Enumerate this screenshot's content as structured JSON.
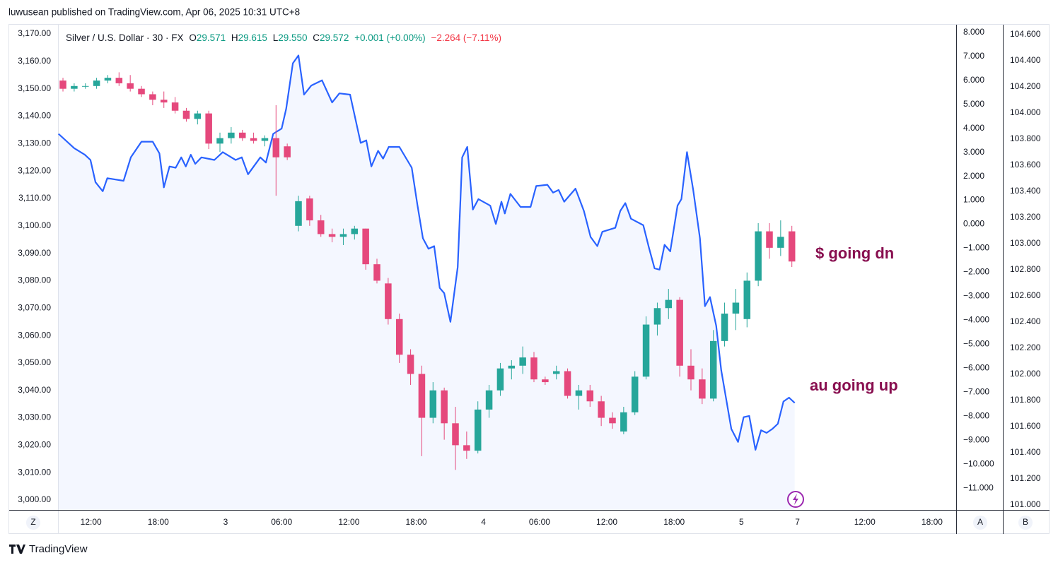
{
  "header": {
    "text": "luwusean published on TradingView.com, Apr 06, 2025 10:31 UTC+8"
  },
  "footer": {
    "brand": "TradingView"
  },
  "axis_buttons": [
    "Z",
    "A",
    "B"
  ],
  "chart_data": {
    "type": "candlestick",
    "legend": {
      "symbol": "Silver / U.S. Dollar · 30 · FX",
      "items": [
        {
          "key": "O",
          "value": "29.571"
        },
        {
          "key": "H",
          "value": "29.615"
        },
        {
          "key": "L",
          "value": "29.550"
        },
        {
          "key": "C",
          "value": "29.572"
        }
      ],
      "change": "+0.001 (+0.00%)",
      "change_total": "−2.264 (−7.11%)"
    },
    "annotations": [
      "$ going dn",
      "au going up"
    ],
    "up_color": "#26a69a",
    "down_color": "#e5487c",
    "grid": false,
    "xlim": [
      -0.76,
      159.3
    ],
    "xticks": [
      {
        "value": 5,
        "label": "12:00"
      },
      {
        "value": 17,
        "label": "18:00"
      },
      {
        "value": 29,
        "label": "3"
      },
      {
        "value": 39,
        "label": "06:00"
      },
      {
        "value": 51,
        "label": "12:00"
      },
      {
        "value": 63,
        "label": "18:00"
      },
      {
        "value": 75,
        "label": "4"
      },
      {
        "value": 85,
        "label": "06:00"
      },
      {
        "value": 97,
        "label": "12:00"
      },
      {
        "value": 109,
        "label": "18:00"
      },
      {
        "value": 121,
        "label": "5"
      },
      {
        "value": 131,
        "label": "7"
      },
      {
        "value": 143,
        "label": "12:00"
      },
      {
        "value": 155,
        "label": "18:00"
      }
    ],
    "ylim": [
      2996.4,
      3173.1
    ],
    "yticks": [
      {
        "value": 3000,
        "label": "3,000.00"
      },
      {
        "value": 3010,
        "label": "3,010.00"
      },
      {
        "value": 3020,
        "label": "3,020.00"
      },
      {
        "value": 3030,
        "label": "3,030.00"
      },
      {
        "value": 3040,
        "label": "3,040.00"
      },
      {
        "value": 3050,
        "label": "3,050.00"
      },
      {
        "value": 3060,
        "label": "3,060.00"
      },
      {
        "value": 3070,
        "label": "3,070.00"
      },
      {
        "value": 3080,
        "label": "3,080.00"
      },
      {
        "value": 3090,
        "label": "3,090.00"
      },
      {
        "value": 3100,
        "label": "3,100.00"
      },
      {
        "value": 3110,
        "label": "3,110.00"
      },
      {
        "value": 3120,
        "label": "3,120.00"
      },
      {
        "value": 3130,
        "label": "3,130.00"
      },
      {
        "value": 3140,
        "label": "3,140.00"
      },
      {
        "value": 3150,
        "label": "3,150.00"
      },
      {
        "value": 3160,
        "label": "3,160.00"
      },
      {
        "value": 3170,
        "label": "3,170.00"
      }
    ],
    "y3lim": [
      -11.91,
      8.29
    ],
    "y3ticks": [
      {
        "value": 8,
        "label": "8.000"
      },
      {
        "value": 7,
        "label": "7.000"
      },
      {
        "value": 6,
        "label": "6.000"
      },
      {
        "value": 5,
        "label": "5.000"
      },
      {
        "value": 4,
        "label": "4.000"
      },
      {
        "value": 3,
        "label": "3.000"
      },
      {
        "value": 2,
        "label": "2.000"
      },
      {
        "value": 1,
        "label": "1.000"
      },
      {
        "value": 0,
        "label": "0.000"
      },
      {
        "value": -1,
        "label": "−1.000"
      },
      {
        "value": -2,
        "label": "−2.000"
      },
      {
        "value": -3,
        "label": "−3.000"
      },
      {
        "value": -4,
        "label": "−4.000"
      },
      {
        "value": -5,
        "label": "−5.000"
      },
      {
        "value": -6,
        "label": "−6.000"
      },
      {
        "value": -7,
        "label": "−7.000"
      },
      {
        "value": -8,
        "label": "−8.000"
      },
      {
        "value": -9,
        "label": "−9.000"
      },
      {
        "value": -10,
        "label": "−10.000"
      },
      {
        "value": -11,
        "label": "−11.000"
      }
    ],
    "y2lim": [
      100.96,
      104.67
    ],
    "y2ticks": [
      {
        "value": 101,
        "label": "101.000"
      },
      {
        "value": 101.2,
        "label": "101.200"
      },
      {
        "value": 101.4,
        "label": "101.400"
      },
      {
        "value": 101.6,
        "label": "101.600"
      },
      {
        "value": 101.8,
        "label": "101.800"
      },
      {
        "value": 102,
        "label": "102.000"
      },
      {
        "value": 102.2,
        "label": "102.200"
      },
      {
        "value": 102.4,
        "label": "102.400"
      },
      {
        "value": 102.6,
        "label": "102.600"
      },
      {
        "value": 102.8,
        "label": "102.800"
      },
      {
        "value": 103,
        "label": "103.000"
      },
      {
        "value": 103.2,
        "label": "103.200"
      },
      {
        "value": 103.4,
        "label": "103.400"
      },
      {
        "value": 103.6,
        "label": "103.600"
      },
      {
        "value": 103.8,
        "label": "103.800"
      },
      {
        "value": 104,
        "label": "104.000"
      },
      {
        "value": 104.2,
        "label": "104.200"
      },
      {
        "value": 104.4,
        "label": "104.400"
      },
      {
        "value": 104.6,
        "label": "104.600"
      }
    ],
    "x": [
      0,
      2,
      4,
      6,
      8,
      10,
      12,
      14,
      16,
      18,
      20,
      22,
      24,
      26,
      28,
      30,
      32,
      34,
      36,
      38,
      40,
      42,
      44,
      46,
      48,
      50,
      52,
      54,
      56,
      58,
      60,
      62,
      64,
      66,
      68,
      70,
      72,
      74,
      76,
      78,
      80,
      82,
      84,
      86,
      88,
      90,
      92,
      94,
      96,
      98,
      100,
      102,
      104,
      106,
      108,
      110,
      112,
      114,
      116,
      118,
      120,
      122,
      124,
      126,
      128,
      130
    ],
    "open": [
      3153,
      3150,
      3151,
      3151,
      3153,
      3154,
      3152,
      3150,
      3148,
      3146,
      3145,
      3142,
      3139,
      3141,
      3130,
      3132,
      3134,
      3132,
      3131,
      3132,
      3129,
      3100,
      3110,
      3102,
      3097,
      3096,
      3097,
      3099,
      3086,
      3079,
      3066,
      3053,
      3046,
      3030,
      3040,
      3028,
      3020,
      3018,
      3033,
      3040,
      3048,
      3049,
      3052,
      3044,
      3046,
      3047,
      3038,
      3040,
      3036,
      3030,
      3025,
      3032,
      3045,
      3064,
      3070,
      3073,
      3049,
      3044,
      3037,
      3058,
      3068,
      3066,
      3080,
      3098,
      3092,
      3098
    ],
    "high": [
      3154,
      3152,
      3152,
      3154,
      3155,
      3156,
      3155,
      3151,
      3149,
      3149,
      3147,
      3143,
      3142,
      3142,
      3134,
      3136,
      3135,
      3134,
      3133,
      3144,
      3130,
      3111,
      3111,
      3104,
      3099,
      3099,
      3100,
      3099,
      3088,
      3081,
      3068,
      3055,
      3049,
      3043,
      3041,
      3034,
      3025,
      3036,
      3042,
      3050,
      3051,
      3056,
      3054,
      3045,
      3049,
      3048,
      3042,
      3042,
      3038,
      3032,
      3034,
      3047,
      3067,
      3072,
      3077,
      3074,
      3055,
      3048,
      3062,
      3072,
      3077,
      3083,
      3101,
      3101,
      3102,
      3100
    ],
    "low": [
      3149,
      3149,
      3150,
      3150,
      3152,
      3151,
      3149,
      3147,
      3144,
      3143,
      3141,
      3138,
      3137,
      3128,
      3127,
      3130,
      3131,
      3130,
      3129,
      3111,
      3124,
      3098,
      3100,
      3096,
      3094,
      3093,
      3095,
      3084,
      3079,
      3064,
      3050,
      3042,
      3016,
      3028,
      3022,
      3011,
      3015,
      3017,
      3030,
      3038,
      3044,
      3046,
      3043,
      3042,
      3044,
      3037,
      3033,
      3034,
      3027,
      3026,
      3024,
      3031,
      3044,
      3060,
      3066,
      3045,
      3040,
      3035,
      3036,
      3056,
      3062,
      3063,
      3078,
      3088,
      3089,
      3085
    ],
    "close": [
      3150,
      3151,
      3151,
      3153,
      3154,
      3152,
      3150,
      3148,
      3146,
      3145,
      3142,
      3139,
      3141,
      3130,
      3132,
      3134,
      3132,
      3131,
      3132,
      3125,
      3125,
      3109,
      3102,
      3097,
      3096,
      3097,
      3099,
      3086,
      3080,
      3066,
      3053,
      3046,
      3030,
      3040,
      3028,
      3020,
      3018,
      3033,
      3040,
      3048,
      3049,
      3052,
      3044,
      3043,
      3047,
      3038,
      3040,
      3036,
      3030,
      3028,
      3032,
      3045,
      3064,
      3070,
      3073,
      3049,
      3044,
      3037,
      3058,
      3068,
      3072,
      3080,
      3098,
      3092,
      3096,
      3087
    ],
    "overlay": {
      "type": "line",
      "axis": "y2",
      "color": "#2962ff",
      "x": [
        -0.8,
        2.0,
        3.9,
        4.9,
        5.8,
        7.1,
        7.9,
        10.8,
        12.1,
        14.0,
        16.0,
        17.2,
        18.0,
        19.0,
        20.1,
        21.1,
        21.9,
        22.8,
        23.6,
        24.7,
        27.0,
        28.5,
        30.8,
        31.9,
        33.0,
        35.2,
        36.2,
        37.5,
        39.0,
        39.8,
        41.0,
        42.0,
        43.0,
        44.3,
        46.2,
        48.0,
        49.3,
        51.2,
        53.1,
        54.1,
        55.0,
        56.2,
        57.1,
        58.1,
        60.0,
        62.2,
        63.2,
        64.2,
        65.2,
        66.2,
        67.2,
        68.0,
        69.1,
        70.4,
        71.2,
        72.1,
        73.1,
        74.1,
        76.2,
        77.2,
        78.2,
        78.8,
        79.8,
        81.6,
        83.4,
        84.4,
        86.4,
        87.4,
        88.4,
        89.4,
        91.4,
        92.9,
        94.1,
        95.3,
        96.2,
        98.5,
        99.4,
        100.3,
        101.3,
        103.5,
        104.5,
        105.5,
        106.4,
        107.3,
        108.3,
        109.6,
        110.3,
        111.3,
        112.4,
        113.6,
        114.5,
        115.4,
        116.5,
        117.4,
        119.2,
        120.4,
        121.4,
        122.4,
        123.5,
        124.5,
        125.5,
        126.5,
        127.5,
        128.5,
        129.5,
        130.5
      ],
      "values": [
        103.84,
        103.73,
        103.68,
        103.64,
        103.47,
        103.4,
        103.5,
        103.48,
        103.66,
        103.78,
        103.78,
        103.69,
        103.43,
        103.59,
        103.58,
        103.66,
        103.59,
        103.68,
        103.61,
        103.66,
        103.64,
        103.7,
        103.64,
        103.66,
        103.53,
        103.66,
        103.62,
        103.84,
        103.88,
        104.03,
        104.38,
        104.44,
        104.14,
        104.21,
        104.25,
        104.08,
        104.15,
        104.14,
        103.77,
        103.79,
        103.59,
        103.71,
        103.65,
        103.74,
        103.74,
        103.58,
        103.3,
        103.04,
        102.96,
        102.98,
        102.66,
        102.62,
        102.4,
        102.82,
        103.66,
        103.74,
        103.26,
        103.34,
        103.29,
        103.15,
        103.32,
        103.23,
        103.38,
        103.28,
        103.28,
        103.44,
        103.45,
        103.39,
        103.41,
        103.32,
        103.42,
        103.25,
        103.05,
        102.98,
        103.09,
        103.12,
        103.25,
        103.31,
        103.19,
        103.14,
        102.97,
        102.81,
        102.8,
        102.99,
        102.94,
        103.29,
        103.34,
        103.7,
        103.41,
        103.04,
        102.52,
        102.59,
        102.37,
        102.03,
        101.58,
        101.48,
        101.67,
        101.68,
        101.42,
        101.57,
        101.55,
        101.58,
        101.62,
        101.79,
        101.82,
        101.78
      ]
    }
  }
}
